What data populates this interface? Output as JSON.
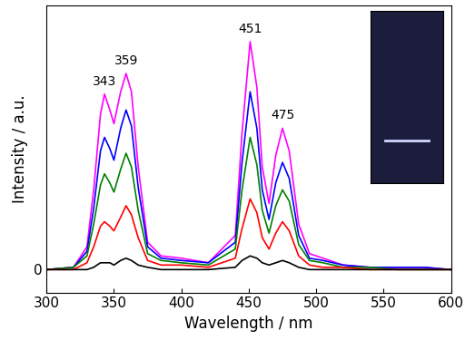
{
  "chart_data": {
    "type": "line",
    "x_label": "Wavelength / nm",
    "y_label": "Intensity / a.u.",
    "x": [
      300,
      320,
      330,
      335,
      340,
      343,
      347,
      350,
      355,
      359,
      363,
      368,
      375,
      385,
      400,
      420,
      440,
      445,
      451,
      456,
      460,
      465,
      470,
      475,
      480,
      487,
      495,
      505,
      520,
      540,
      560,
      580,
      600
    ],
    "series": [
      {
        "color": "#ff00ff",
        "values": [
          0.0,
          0.01,
          0.1,
          0.35,
          0.68,
          0.77,
          0.7,
          0.64,
          0.78,
          0.86,
          0.78,
          0.45,
          0.12,
          0.06,
          0.05,
          0.03,
          0.15,
          0.6,
          1.0,
          0.8,
          0.45,
          0.29,
          0.5,
          0.62,
          0.52,
          0.2,
          0.07,
          0.05,
          0.02,
          0.01,
          0.01,
          0.01,
          0.0
        ]
      },
      {
        "color": "#0000ff",
        "values": [
          0.0,
          0.01,
          0.08,
          0.27,
          0.52,
          0.58,
          0.53,
          0.48,
          0.62,
          0.7,
          0.63,
          0.36,
          0.1,
          0.05,
          0.04,
          0.03,
          0.12,
          0.47,
          0.78,
          0.62,
          0.35,
          0.22,
          0.38,
          0.47,
          0.4,
          0.15,
          0.05,
          0.04,
          0.02,
          0.01,
          0.01,
          0.01,
          0.0
        ]
      },
      {
        "color": "#008000",
        "values": [
          0.0,
          0.01,
          0.06,
          0.2,
          0.37,
          0.42,
          0.38,
          0.34,
          0.44,
          0.51,
          0.45,
          0.26,
          0.07,
          0.04,
          0.03,
          0.02,
          0.09,
          0.35,
          0.58,
          0.46,
          0.26,
          0.16,
          0.28,
          0.35,
          0.3,
          0.11,
          0.04,
          0.03,
          0.01,
          0.01,
          0.0,
          0.0,
          0.0
        ]
      },
      {
        "color": "#ff0000",
        "values": [
          0.0,
          0.0,
          0.03,
          0.1,
          0.19,
          0.21,
          0.19,
          0.17,
          0.23,
          0.28,
          0.24,
          0.14,
          0.04,
          0.02,
          0.02,
          0.01,
          0.05,
          0.18,
          0.31,
          0.25,
          0.14,
          0.09,
          0.16,
          0.21,
          0.17,
          0.06,
          0.02,
          0.01,
          0.01,
          0.0,
          0.0,
          0.0,
          0.0
        ]
      },
      {
        "color": "#000000",
        "values": [
          0.0,
          0.0,
          0.0,
          0.01,
          0.03,
          0.03,
          0.03,
          0.02,
          0.04,
          0.05,
          0.04,
          0.02,
          0.01,
          0.0,
          0.0,
          0.0,
          0.01,
          0.04,
          0.06,
          0.05,
          0.03,
          0.02,
          0.03,
          0.04,
          0.03,
          0.01,
          0.0,
          0.0,
          0.0,
          0.0,
          0.0,
          0.0,
          0.0
        ]
      }
    ],
    "annotations": [
      {
        "text": "343",
        "x": 343
      },
      {
        "text": "359",
        "x": 359
      },
      {
        "text": "451",
        "x": 451
      },
      {
        "text": "475",
        "x": 475
      }
    ],
    "xlim": [
      300,
      600
    ],
    "xticks": [
      300,
      350,
      400,
      450,
      500,
      550,
      600
    ],
    "ylim": [
      -0.1,
      1.16
    ],
    "yticks": [
      0
    ],
    "grid": false
  }
}
